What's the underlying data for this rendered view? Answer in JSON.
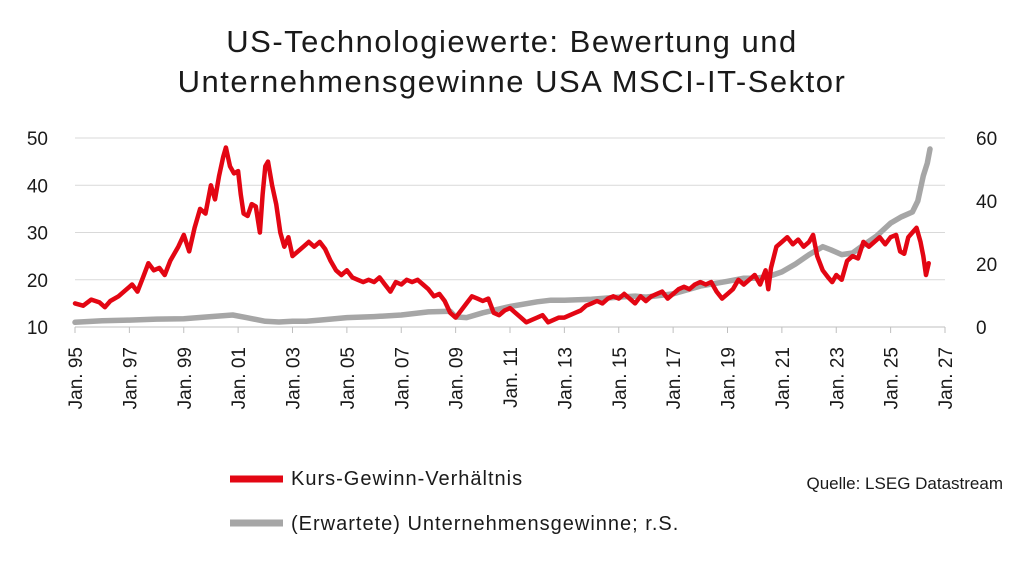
{
  "chart_data": {
    "type": "line",
    "title_line1": "US-Technologiewerte: Bewertung und",
    "title_line2": "Unternehmensgewinne USA MSCI-IT-Sektor",
    "x_tick_labels": [
      "Jan. 95",
      "Jan. 97",
      "Jan. 99",
      "Jan. 01",
      "Jan. 03",
      "Jan. 05",
      "Jan. 07",
      "Jan. 09",
      "Jan. 11",
      "Jan. 13",
      "Jan. 15",
      "Jan. 17",
      "Jan. 19",
      "Jan. 21",
      "Jan. 23",
      "Jan. 25",
      "Jan. 27"
    ],
    "x_tick_years": [
      1995,
      1997,
      1999,
      2001,
      2003,
      2005,
      2007,
      2009,
      2011,
      2013,
      2015,
      2017,
      2019,
      2021,
      2023,
      2025,
      2027
    ],
    "xlim": [
      1995,
      2027
    ],
    "y_left": {
      "ylim": [
        10,
        50
      ],
      "ticks": [
        10,
        20,
        30,
        40,
        50
      ]
    },
    "y_right": {
      "ylim": [
        0,
        60
      ],
      "ticks": [
        0,
        20,
        40,
        60
      ]
    },
    "grid": "horizontal",
    "legend_position": "bottom-left",
    "source": "Quelle: LSEG Datastream",
    "series": [
      {
        "name": "Kurs-Gewinn-Verhältnis",
        "axis": "left",
        "color": "#e30613",
        "points": [
          [
            1995.0,
            15.0
          ],
          [
            1995.3,
            14.5
          ],
          [
            1995.6,
            15.8
          ],
          [
            1995.9,
            15.2
          ],
          [
            1996.1,
            14.2
          ],
          [
            1996.3,
            15.5
          ],
          [
            1996.6,
            16.5
          ],
          [
            1996.9,
            18.0
          ],
          [
            1997.1,
            19.0
          ],
          [
            1997.3,
            17.5
          ],
          [
            1997.5,
            20.5
          ],
          [
            1997.7,
            23.5
          ],
          [
            1997.9,
            22.0
          ],
          [
            1998.1,
            22.5
          ],
          [
            1998.3,
            21.0
          ],
          [
            1998.5,
            24.0
          ],
          [
            1998.8,
            27.0
          ],
          [
            1999.0,
            29.5
          ],
          [
            1999.2,
            26.0
          ],
          [
            1999.4,
            31.0
          ],
          [
            1999.6,
            35.0
          ],
          [
            1999.8,
            34.0
          ],
          [
            2000.0,
            40.0
          ],
          [
            2000.15,
            37.0
          ],
          [
            2000.3,
            42.0
          ],
          [
            2000.45,
            46.0
          ],
          [
            2000.55,
            48.0
          ],
          [
            2000.7,
            44.0
          ],
          [
            2000.85,
            42.5
          ],
          [
            2001.0,
            43.0
          ],
          [
            2001.1,
            38.0
          ],
          [
            2001.2,
            34.0
          ],
          [
            2001.35,
            33.5
          ],
          [
            2001.5,
            36.0
          ],
          [
            2001.65,
            35.5
          ],
          [
            2001.8,
            30.0
          ],
          [
            2001.9,
            38.0
          ],
          [
            2002.0,
            44.0
          ],
          [
            2002.1,
            45.0
          ],
          [
            2002.25,
            40.0
          ],
          [
            2002.4,
            36.0
          ],
          [
            2002.55,
            30.0
          ],
          [
            2002.7,
            27.0
          ],
          [
            2002.85,
            29.0
          ],
          [
            2003.0,
            25.0
          ],
          [
            2003.2,
            26.0
          ],
          [
            2003.4,
            27.0
          ],
          [
            2003.6,
            28.0
          ],
          [
            2003.8,
            27.0
          ],
          [
            2004.0,
            28.0
          ],
          [
            2004.2,
            26.5
          ],
          [
            2004.4,
            24.0
          ],
          [
            2004.6,
            22.0
          ],
          [
            2004.8,
            21.0
          ],
          [
            2005.0,
            22.0
          ],
          [
            2005.2,
            20.5
          ],
          [
            2005.4,
            20.0
          ],
          [
            2005.6,
            19.5
          ],
          [
            2005.8,
            20.0
          ],
          [
            2006.0,
            19.5
          ],
          [
            2006.2,
            20.5
          ],
          [
            2006.4,
            19.0
          ],
          [
            2006.6,
            17.5
          ],
          [
            2006.8,
            19.5
          ],
          [
            2007.0,
            19.0
          ],
          [
            2007.2,
            20.0
          ],
          [
            2007.4,
            19.5
          ],
          [
            2007.6,
            20.0
          ],
          [
            2007.8,
            19.0
          ],
          [
            2008.0,
            18.0
          ],
          [
            2008.2,
            16.5
          ],
          [
            2008.4,
            17.0
          ],
          [
            2008.6,
            15.5
          ],
          [
            2008.8,
            13.0
          ],
          [
            2009.0,
            12.0
          ],
          [
            2009.2,
            13.5
          ],
          [
            2009.4,
            15.0
          ],
          [
            2009.6,
            16.5
          ],
          [
            2009.8,
            16.0
          ],
          [
            2010.0,
            15.5
          ],
          [
            2010.2,
            16.0
          ],
          [
            2010.4,
            13.0
          ],
          [
            2010.6,
            12.5
          ],
          [
            2010.8,
            13.5
          ],
          [
            2011.0,
            14.0
          ],
          [
            2011.2,
            13.0
          ],
          [
            2011.4,
            12.0
          ],
          [
            2011.6,
            11.0
          ],
          [
            2011.8,
            11.5
          ],
          [
            2012.0,
            12.0
          ],
          [
            2012.2,
            12.5
          ],
          [
            2012.4,
            11.0
          ],
          [
            2012.6,
            11.5
          ],
          [
            2012.8,
            12.0
          ],
          [
            2013.0,
            12.0
          ],
          [
            2013.2,
            12.5
          ],
          [
            2013.4,
            13.0
          ],
          [
            2013.6,
            13.5
          ],
          [
            2013.8,
            14.5
          ],
          [
            2014.0,
            15.0
          ],
          [
            2014.2,
            15.5
          ],
          [
            2014.4,
            15.0
          ],
          [
            2014.6,
            16.0
          ],
          [
            2014.8,
            16.5
          ],
          [
            2015.0,
            16.0
          ],
          [
            2015.2,
            17.0
          ],
          [
            2015.4,
            16.0
          ],
          [
            2015.6,
            15.0
          ],
          [
            2015.8,
            16.5
          ],
          [
            2016.0,
            15.5
          ],
          [
            2016.2,
            16.5
          ],
          [
            2016.4,
            17.0
          ],
          [
            2016.6,
            17.5
          ],
          [
            2016.8,
            16.0
          ],
          [
            2017.0,
            17.0
          ],
          [
            2017.2,
            18.0
          ],
          [
            2017.4,
            18.5
          ],
          [
            2017.6,
            18.0
          ],
          [
            2017.8,
            19.0
          ],
          [
            2018.0,
            19.5
          ],
          [
            2018.2,
            19.0
          ],
          [
            2018.4,
            19.5
          ],
          [
            2018.6,
            17.5
          ],
          [
            2018.8,
            16.0
          ],
          [
            2019.0,
            17.0
          ],
          [
            2019.2,
            18.0
          ],
          [
            2019.4,
            20.0
          ],
          [
            2019.6,
            19.0
          ],
          [
            2019.8,
            20.0
          ],
          [
            2020.0,
            21.0
          ],
          [
            2020.2,
            19.0
          ],
          [
            2020.4,
            22.0
          ],
          [
            2020.5,
            18.0
          ],
          [
            2020.6,
            22.5
          ],
          [
            2020.8,
            27.0
          ],
          [
            2021.0,
            28.0
          ],
          [
            2021.2,
            29.0
          ],
          [
            2021.4,
            27.5
          ],
          [
            2021.6,
            28.5
          ],
          [
            2021.8,
            27.0
          ],
          [
            2022.0,
            28.0
          ],
          [
            2022.15,
            29.5
          ],
          [
            2022.3,
            25.0
          ],
          [
            2022.5,
            22.0
          ],
          [
            2022.7,
            20.5
          ],
          [
            2022.85,
            19.5
          ],
          [
            2023.0,
            21.0
          ],
          [
            2023.2,
            20.0
          ],
          [
            2023.4,
            24.0
          ],
          [
            2023.6,
            25.0
          ],
          [
            2023.8,
            24.5
          ],
          [
            2024.0,
            28.0
          ],
          [
            2024.2,
            27.0
          ],
          [
            2024.4,
            28.0
          ],
          [
            2024.6,
            29.0
          ],
          [
            2024.8,
            27.5
          ],
          [
            2025.0,
            29.0
          ],
          [
            2025.2,
            29.5
          ],
          [
            2025.35,
            26.0
          ],
          [
            2025.5,
            25.5
          ],
          [
            2025.65,
            29.0
          ],
          [
            2025.8,
            30.0
          ],
          [
            2025.95,
            31.0
          ],
          [
            2026.1,
            28.0
          ],
          [
            2026.2,
            25.0
          ],
          [
            2026.3,
            21.0
          ],
          [
            2026.4,
            23.5
          ]
        ]
      },
      {
        "name": "(Erwartete) Unternehmensgewinne; r.S.",
        "axis": "right",
        "color": "#a6a6a6",
        "points": [
          [
            1995.0,
            1.5
          ],
          [
            1996.0,
            2.0
          ],
          [
            1997.0,
            2.2
          ],
          [
            1998.0,
            2.5
          ],
          [
            1999.0,
            2.6
          ],
          [
            2000.0,
            3.3
          ],
          [
            2000.8,
            3.8
          ],
          [
            2001.3,
            3.0
          ],
          [
            2002.0,
            1.8
          ],
          [
            2002.5,
            1.6
          ],
          [
            2003.0,
            1.8
          ],
          [
            2003.5,
            1.8
          ],
          [
            2004.0,
            2.2
          ],
          [
            2005.0,
            3.0
          ],
          [
            2006.0,
            3.3
          ],
          [
            2007.0,
            3.8
          ],
          [
            2008.0,
            4.8
          ],
          [
            2008.8,
            5.0
          ],
          [
            2009.0,
            3.2
          ],
          [
            2009.4,
            3.0
          ],
          [
            2010.0,
            4.5
          ],
          [
            2011.0,
            6.5
          ],
          [
            2012.0,
            8.0
          ],
          [
            2012.5,
            8.5
          ],
          [
            2013.0,
            8.5
          ],
          [
            2014.0,
            8.8
          ],
          [
            2015.0,
            9.5
          ],
          [
            2015.6,
            9.8
          ],
          [
            2016.0,
            9.5
          ],
          [
            2017.0,
            10.5
          ],
          [
            2018.0,
            13.0
          ],
          [
            2019.0,
            14.5
          ],
          [
            2019.6,
            15.5
          ],
          [
            2020.0,
            15.5
          ],
          [
            2020.5,
            16.0
          ],
          [
            2021.0,
            17.5
          ],
          [
            2021.5,
            20.0
          ],
          [
            2022.0,
            23.0
          ],
          [
            2022.5,
            25.5
          ],
          [
            2022.8,
            24.5
          ],
          [
            2023.2,
            23.0
          ],
          [
            2023.6,
            23.5
          ],
          [
            2024.0,
            26.0
          ],
          [
            2024.5,
            29.0
          ],
          [
            2025.0,
            33.0
          ],
          [
            2025.4,
            35.0
          ],
          [
            2025.8,
            36.5
          ],
          [
            2026.0,
            40.0
          ],
          [
            2026.2,
            48.0
          ],
          [
            2026.35,
            52.0
          ],
          [
            2026.45,
            56.5
          ]
        ]
      }
    ]
  }
}
